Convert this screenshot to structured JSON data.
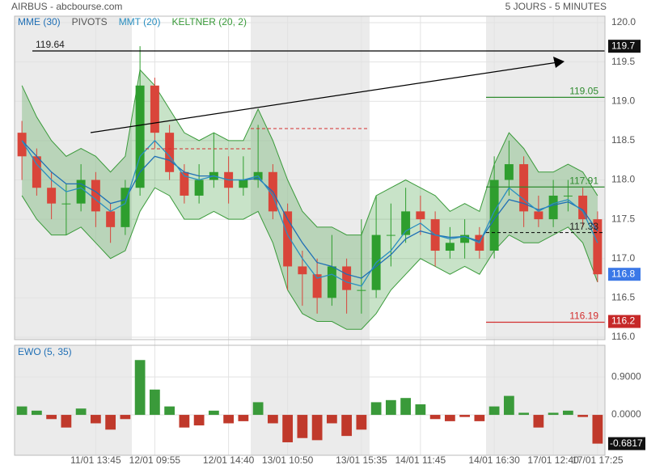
{
  "chart_data": [
    {
      "type": "candlestick",
      "title": "AIRBUS - abcbourse.com",
      "subtitle": "5 JOURS - 5 MINUTES",
      "categories": [
        null,
        null,
        null,
        null,
        null,
        "11/01 13:45",
        null,
        null,
        null,
        "12/01 09:55",
        null,
        null,
        null,
        null,
        "12/01 14:40",
        null,
        null,
        null,
        "13/01 10:50",
        null,
        null,
        null,
        null,
        "13/01 15:35",
        null,
        null,
        null,
        "14/01 11:45",
        null,
        null,
        null,
        null,
        "14/01 16:30",
        null,
        null,
        null,
        "17/01 12:40",
        null,
        null,
        "17/01 17:25"
      ],
      "open": [
        118.6,
        118.3,
        117.9,
        117.7,
        117.7,
        118.0,
        117.6,
        117.4,
        117.9,
        119.2,
        118.6,
        118.1,
        117.8,
        118.0,
        118.1,
        117.9,
        118.0,
        118.1,
        117.6,
        116.9,
        116.8,
        116.5,
        116.9,
        116.6,
        116.6,
        117.3,
        117.3,
        117.6,
        117.5,
        117.1,
        117.2,
        117.3,
        117.1,
        118.0,
        118.2,
        117.6,
        117.5,
        117.8,
        117.8,
        117.5
      ],
      "high": [
        118.75,
        118.4,
        118.1,
        117.95,
        118.2,
        118.1,
        117.7,
        118.0,
        119.7,
        119.3,
        118.7,
        118.2,
        118.2,
        118.6,
        118.3,
        118.3,
        118.7,
        118.2,
        117.7,
        117.1,
        117.0,
        117.3,
        117.0,
        117.5,
        117.8,
        117.7,
        117.9,
        117.8,
        117.6,
        117.4,
        117.5,
        117.4,
        118.3,
        118.5,
        118.3,
        117.8,
        118.0,
        118.0,
        117.9,
        117.6
      ],
      "low": [
        118.0,
        117.8,
        117.5,
        117.3,
        117.6,
        117.4,
        117.2,
        117.3,
        117.8,
        118.4,
        118.0,
        117.7,
        117.7,
        117.9,
        117.7,
        117.8,
        117.9,
        117.5,
        116.6,
        116.4,
        116.3,
        116.4,
        116.3,
        116.3,
        116.5,
        116.9,
        117.2,
        117.3,
        116.9,
        117.0,
        117.0,
        117.0,
        117.0,
        117.8,
        117.4,
        117.4,
        117.4,
        117.6,
        117.4,
        116.7
      ],
      "close": [
        118.3,
        117.9,
        117.7,
        117.7,
        118.0,
        117.6,
        117.4,
        117.9,
        119.2,
        118.6,
        118.1,
        117.8,
        118.0,
        118.1,
        117.9,
        118.0,
        118.1,
        117.6,
        116.9,
        116.8,
        116.5,
        116.9,
        116.6,
        116.6,
        117.3,
        117.3,
        117.6,
        117.5,
        117.1,
        117.2,
        117.3,
        117.1,
        118.0,
        118.2,
        117.6,
        117.5,
        117.8,
        117.8,
        117.5,
        116.8
      ],
      "up_color": "#2e9e2e",
      "down_color": "#d9453a",
      "series": [
        {
          "name": "MME (30)",
          "color": "#1f6fb5",
          "values": [
            118.5,
            118.3,
            118.1,
            117.95,
            117.95,
            117.85,
            117.7,
            117.75,
            118.1,
            118.3,
            118.25,
            118.1,
            118.05,
            118.05,
            118.0,
            118.0,
            118.02,
            117.85,
            117.5,
            117.2,
            116.95,
            116.9,
            116.8,
            116.75,
            116.9,
            117.05,
            117.25,
            117.35,
            117.3,
            117.27,
            117.28,
            117.22,
            117.5,
            117.75,
            117.7,
            117.62,
            117.68,
            117.72,
            117.62,
            117.35
          ]
        },
        {
          "name": "MMT (20)",
          "color": "#2a8fc0",
          "values": [
            118.5,
            118.2,
            118.0,
            117.85,
            117.9,
            117.75,
            117.6,
            117.7,
            118.3,
            118.5,
            118.3,
            118.05,
            118.0,
            118.05,
            118.0,
            118.0,
            118.05,
            117.8,
            117.3,
            117.0,
            116.75,
            116.8,
            116.7,
            116.65,
            116.95,
            117.1,
            117.35,
            117.45,
            117.3,
            117.25,
            117.28,
            117.2,
            117.6,
            117.9,
            117.75,
            117.6,
            117.7,
            117.75,
            117.6,
            117.2
          ]
        }
      ],
      "keltner": {
        "name": "KELTNER (20, 2)",
        "color": "#3a9a3a",
        "upper": [
          119.2,
          118.8,
          118.5,
          118.3,
          118.4,
          118.3,
          118.1,
          118.3,
          119.4,
          119.2,
          118.9,
          118.6,
          118.5,
          118.6,
          118.5,
          118.5,
          118.9,
          118.5,
          118.0,
          117.6,
          117.4,
          117.4,
          117.3,
          117.3,
          117.8,
          117.9,
          118.0,
          117.9,
          117.8,
          117.6,
          117.7,
          117.6,
          118.2,
          118.6,
          118.4,
          118.1,
          118.1,
          118.2,
          118.1,
          117.8
        ],
        "lower": [
          117.8,
          117.5,
          117.3,
          117.3,
          117.4,
          117.2,
          117.0,
          117.1,
          117.6,
          117.9,
          117.8,
          117.5,
          117.5,
          117.6,
          117.5,
          117.5,
          117.6,
          117.2,
          116.6,
          116.3,
          116.2,
          116.2,
          116.1,
          116.1,
          116.3,
          116.6,
          116.8,
          117.0,
          116.9,
          116.8,
          116.9,
          116.8,
          117.1,
          117.3,
          117.2,
          117.2,
          117.3,
          117.4,
          117.2,
          116.7
        ]
      },
      "pivots": {
        "name": "PIVOTS",
        "color": "#555555"
      },
      "ylim": [
        116,
        120
      ],
      "yticks": [
        {
          "value": 116,
          "label": "116.0"
        },
        116.5,
        {
          "value": 117,
          "label": "117.0"
        },
        117.5,
        {
          "value": 118,
          "label": "118.0"
        },
        118.5,
        {
          "value": 119,
          "label": "119.0"
        },
        119.5,
        {
          "value": 120,
          "label": "120.0"
        }
      ],
      "levels": [
        {
          "value": 119.64,
          "color": "#000000",
          "style": "solid"
        },
        {
          "value": 119.05,
          "color": "#2e8b2e",
          "style": "solid"
        },
        {
          "value": 117.91,
          "color": "#2e8b2e",
          "style": "solid"
        },
        {
          "value": 117.33,
          "color": "#000000",
          "style": "dashed"
        },
        {
          "value": 116.19,
          "color": "#d32f2f",
          "style": "solid"
        }
      ],
      "markers": [
        {
          "value": 119.7,
          "color": "#111111"
        },
        {
          "value": 116.2,
          "color": "#c62828"
        }
      ],
      "last_color": "#3b78e7",
      "grid": true
    },
    {
      "type": "bar",
      "title": "EWO (5, 35)",
      "values": [
        0.2,
        0.1,
        -0.1,
        -0.3,
        0.15,
        -0.2,
        -0.35,
        -0.1,
        1.3,
        0.6,
        0.2,
        -0.3,
        -0.25,
        0.1,
        -0.2,
        -0.15,
        0.3,
        -0.2,
        -0.65,
        -0.55,
        -0.6,
        -0.2,
        -0.5,
        -0.35,
        0.3,
        0.35,
        0.4,
        0.25,
        -0.1,
        -0.15,
        -0.05,
        -0.15,
        0.2,
        0.45,
        0.05,
        -0.3,
        0.05,
        0.1,
        -0.05,
        -0.6817
      ],
      "up_color": "#3a9a3a",
      "down_color": "#c0392b",
      "last_color": "#111111",
      "ylim": [
        -0.9,
        1.65
      ],
      "yticks": [
        {
          "value": 0.9,
          "label": "0.9000"
        },
        {
          "value": 0,
          "label": "0.0000"
        }
      ],
      "grid": true
    }
  ]
}
